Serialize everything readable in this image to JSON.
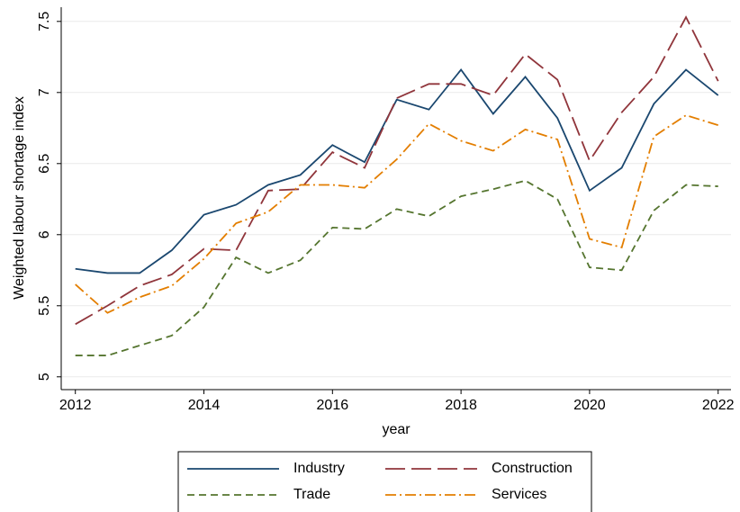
{
  "chart_data": {
    "type": "line",
    "x_label": "year",
    "y_label": "Weighted labour shortage index",
    "x": [
      2012,
      2012.5,
      2013,
      2013.5,
      2014,
      2014.5,
      2015,
      2015.5,
      2016,
      2016.5,
      2017,
      2017.5,
      2018,
      2018.5,
      2019,
      2019.5,
      2020,
      2020.5,
      2021,
      2021.5,
      2022
    ],
    "series": [
      {
        "name": "Industry",
        "color": "#1a476f",
        "dash": "none",
        "values": [
          5.76,
          5.73,
          5.73,
          5.89,
          6.14,
          6.21,
          6.35,
          6.42,
          6.63,
          6.51,
          6.95,
          6.88,
          7.16,
          6.85,
          7.11,
          6.82,
          6.31,
          6.47,
          6.92,
          7.16,
          6.98
        ]
      },
      {
        "name": "Construction",
        "color": "#90353b",
        "dash": "22 7",
        "values": [
          5.37,
          5.5,
          5.64,
          5.72,
          5.9,
          5.89,
          6.31,
          6.32,
          6.58,
          6.47,
          6.96,
          7.06,
          7.06,
          6.98,
          7.27,
          7.09,
          6.52,
          6.86,
          7.11,
          7.53,
          7.08
        ]
      },
      {
        "name": "Trade",
        "color": "#55752f",
        "dash": "8 5",
        "values": [
          5.15,
          5.15,
          5.22,
          5.29,
          5.49,
          5.84,
          5.73,
          5.82,
          6.05,
          6.04,
          6.18,
          6.13,
          6.27,
          6.32,
          6.38,
          6.25,
          5.77,
          5.75,
          6.17,
          6.35,
          6.34
        ]
      },
      {
        "name": "Services",
        "color": "#e37e00",
        "dash": "12 4 2 4",
        "values": [
          5.65,
          5.45,
          5.56,
          5.64,
          5.83,
          6.08,
          6.16,
          6.35,
          6.35,
          6.33,
          6.53,
          6.78,
          6.66,
          6.59,
          6.74,
          6.67,
          5.97,
          5.91,
          6.69,
          6.84,
          6.77
        ]
      }
    ],
    "xlim": [
      2011.78,
      2022.2
    ],
    "xticks": [
      2012,
      2014,
      2016,
      2018,
      2020,
      2022
    ],
    "ylim": [
      4.91,
      7.6
    ],
    "yticks": [
      5,
      5.5,
      6,
      6.5,
      7,
      7.5
    ],
    "grid": true
  }
}
